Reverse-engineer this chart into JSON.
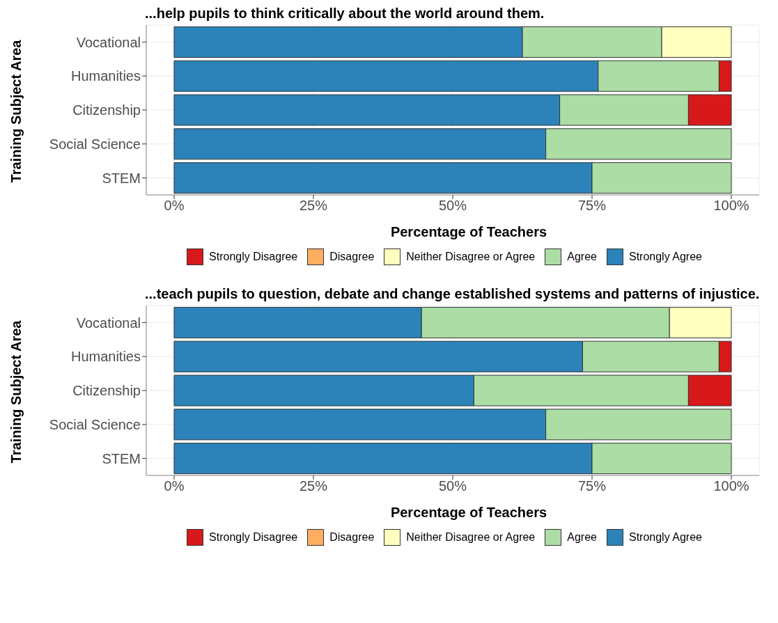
{
  "chart_data": [
    {
      "type": "bar",
      "orientation": "horizontal",
      "stacked": true,
      "title": "...help pupils to think critically about the world around them.",
      "xlabel": "Percentage of Teachers",
      "ylabel": "Training Subject Area",
      "categories": [
        "Vocational",
        "Humanities",
        "Citizenship",
        "Social Science",
        "STEM"
      ],
      "xlim": [
        -5,
        105
      ],
      "xticks": [
        {
          "value": 0,
          "label": "0%"
        },
        {
          "value": 25,
          "label": "25%"
        },
        {
          "value": 50,
          "label": "50%"
        },
        {
          "value": 75,
          "label": "75%"
        },
        {
          "value": 100,
          "label": "100%"
        }
      ],
      "grid": true,
      "legend": "bottom",
      "series": [
        {
          "name": "Strongly Agree",
          "color": "#2b83ba",
          "values": [
            62.5,
            76.1,
            69.2,
            66.7,
            75.0
          ]
        },
        {
          "name": "Agree",
          "color": "#abdda4",
          "values": [
            25.0,
            21.7,
            23.1,
            33.3,
            25.0
          ]
        },
        {
          "name": "Neither Disagree or Agree",
          "color": "#ffffbf",
          "values": [
            12.5,
            0,
            0,
            0,
            0
          ]
        },
        {
          "name": "Disagree",
          "color": "#fdae61",
          "values": [
            0,
            0,
            0,
            0,
            0
          ]
        },
        {
          "name": "Strongly Disagree",
          "color": "#d7191c",
          "values": [
            0,
            2.2,
            7.7,
            0,
            0
          ]
        }
      ]
    },
    {
      "type": "bar",
      "orientation": "horizontal",
      "stacked": true,
      "title": "...teach pupils to question, debate and change established systems and patterns of injustice.",
      "xlabel": "Percentage of Teachers",
      "ylabel": "Training Subject Area",
      "categories": [
        "Vocational",
        "Humanities",
        "Citizenship",
        "Social Science",
        "STEM"
      ],
      "xlim": [
        -5,
        105
      ],
      "xticks": [
        {
          "value": 0,
          "label": "0%"
        },
        {
          "value": 25,
          "label": "25%"
        },
        {
          "value": 50,
          "label": "50%"
        },
        {
          "value": 75,
          "label": "75%"
        },
        {
          "value": 100,
          "label": "100%"
        }
      ],
      "grid": true,
      "legend": "bottom",
      "series": [
        {
          "name": "Strongly Agree",
          "color": "#2b83ba",
          "values": [
            44.4,
            73.3,
            53.8,
            66.7,
            75.0
          ]
        },
        {
          "name": "Agree",
          "color": "#abdda4",
          "values": [
            44.5,
            24.5,
            38.5,
            33.3,
            25.0
          ]
        },
        {
          "name": "Neither Disagree or Agree",
          "color": "#ffffbf",
          "values": [
            11.1,
            0,
            0,
            0,
            0
          ]
        },
        {
          "name": "Disagree",
          "color": "#fdae61",
          "values": [
            0,
            0,
            0,
            0,
            0
          ]
        },
        {
          "name": "Strongly Disagree",
          "color": "#d7191c",
          "values": [
            0,
            2.2,
            7.7,
            0,
            0
          ]
        }
      ]
    }
  ]
}
